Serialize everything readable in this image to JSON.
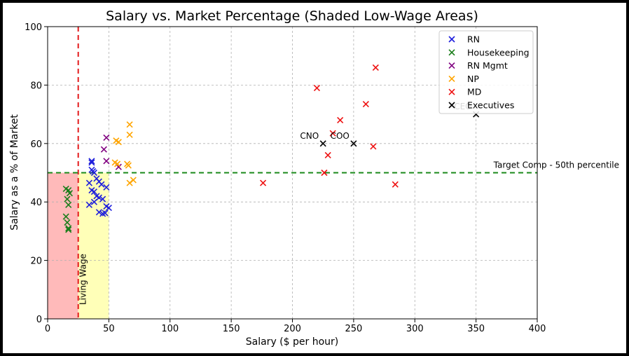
{
  "chart_data": {
    "type": "scatter",
    "title": "Salary vs. Market Percentage (Shaded Low-Wage Areas)",
    "xlabel": "Salary ($ per hour)",
    "ylabel": "Salary as a % of Market",
    "xlim": [
      0,
      400
    ],
    "ylim": [
      0,
      100
    ],
    "xticks": [
      0,
      50,
      100,
      150,
      200,
      250,
      300,
      350,
      400
    ],
    "yticks": [
      0,
      20,
      40,
      60,
      80,
      100
    ],
    "grid": true,
    "legend_position": "top-right",
    "shaded_regions": [
      {
        "x": [
          0,
          25
        ],
        "y": [
          0,
          50
        ],
        "color": "#ffb3b3"
      },
      {
        "x": [
          25,
          50
        ],
        "y": [
          0,
          50
        ],
        "color": "#ffffb0"
      }
    ],
    "reference_lines": [
      {
        "orientation": "vertical",
        "value": 25,
        "label": "Living Wage",
        "color": "#e31a1c"
      },
      {
        "orientation": "horizontal",
        "value": 50,
        "label": "Target Comp - 50th percentile",
        "color": "#1a8a1a"
      }
    ],
    "series": [
      {
        "name": "RN",
        "color": "#1f1fdc",
        "points": [
          [
            36,
            54
          ],
          [
            36,
            53.5
          ],
          [
            36,
            51
          ],
          [
            37,
            50.5
          ],
          [
            38,
            50
          ],
          [
            40,
            48
          ],
          [
            42,
            47
          ],
          [
            44,
            46
          ],
          [
            48,
            45
          ],
          [
            34,
            46.5
          ],
          [
            36,
            44
          ],
          [
            38,
            43.5
          ],
          [
            40,
            42
          ],
          [
            42,
            41.5
          ],
          [
            45,
            41
          ],
          [
            38,
            40
          ],
          [
            34,
            39
          ],
          [
            48,
            38.5
          ],
          [
            50,
            38
          ],
          [
            42,
            36.5
          ],
          [
            45,
            36
          ],
          [
            47,
            36.2
          ]
        ]
      },
      {
        "name": "Housekeeping",
        "color": "#1a7d1a",
        "points": [
          [
            15,
            44.5
          ],
          [
            17,
            44
          ],
          [
            18,
            43
          ],
          [
            16,
            41
          ],
          [
            17,
            39
          ],
          [
            15,
            35
          ],
          [
            16,
            33
          ],
          [
            17,
            31
          ],
          [
            17,
            30.5
          ]
        ]
      },
      {
        "name": "RN Mgmt",
        "color": "#800080",
        "points": [
          [
            48,
            62
          ],
          [
            46,
            58
          ],
          [
            48,
            54
          ],
          [
            58,
            52
          ]
        ]
      },
      {
        "name": "NP",
        "color": "#ffa500",
        "points": [
          [
            67,
            66.5
          ],
          [
            67,
            63
          ],
          [
            56,
            61
          ],
          [
            58,
            60.5
          ],
          [
            55,
            53.5
          ],
          [
            57,
            53
          ],
          [
            65,
            53
          ],
          [
            66,
            52.5
          ],
          [
            70,
            47.5
          ],
          [
            67,
            46.5
          ]
        ]
      },
      {
        "name": "MD",
        "color": "#ee1111",
        "points": [
          [
            268,
            86
          ],
          [
            220,
            79
          ],
          [
            260,
            73.5
          ],
          [
            239,
            68
          ],
          [
            233,
            63.5
          ],
          [
            266,
            59
          ],
          [
            229,
            56
          ],
          [
            226,
            50
          ],
          [
            176,
            46.5
          ],
          [
            284,
            46
          ]
        ]
      },
      {
        "name": "Executives",
        "color": "#000000",
        "points": [
          [
            350,
            70
          ],
          [
            225,
            60
          ],
          [
            250,
            60
          ]
        ]
      }
    ],
    "annotations": [
      {
        "text": "CNO",
        "x": 225,
        "y": 60
      },
      {
        "text": "COO",
        "x": 250,
        "y": 60
      },
      {
        "text": "CEO",
        "x": 350,
        "y": 70
      }
    ]
  }
}
